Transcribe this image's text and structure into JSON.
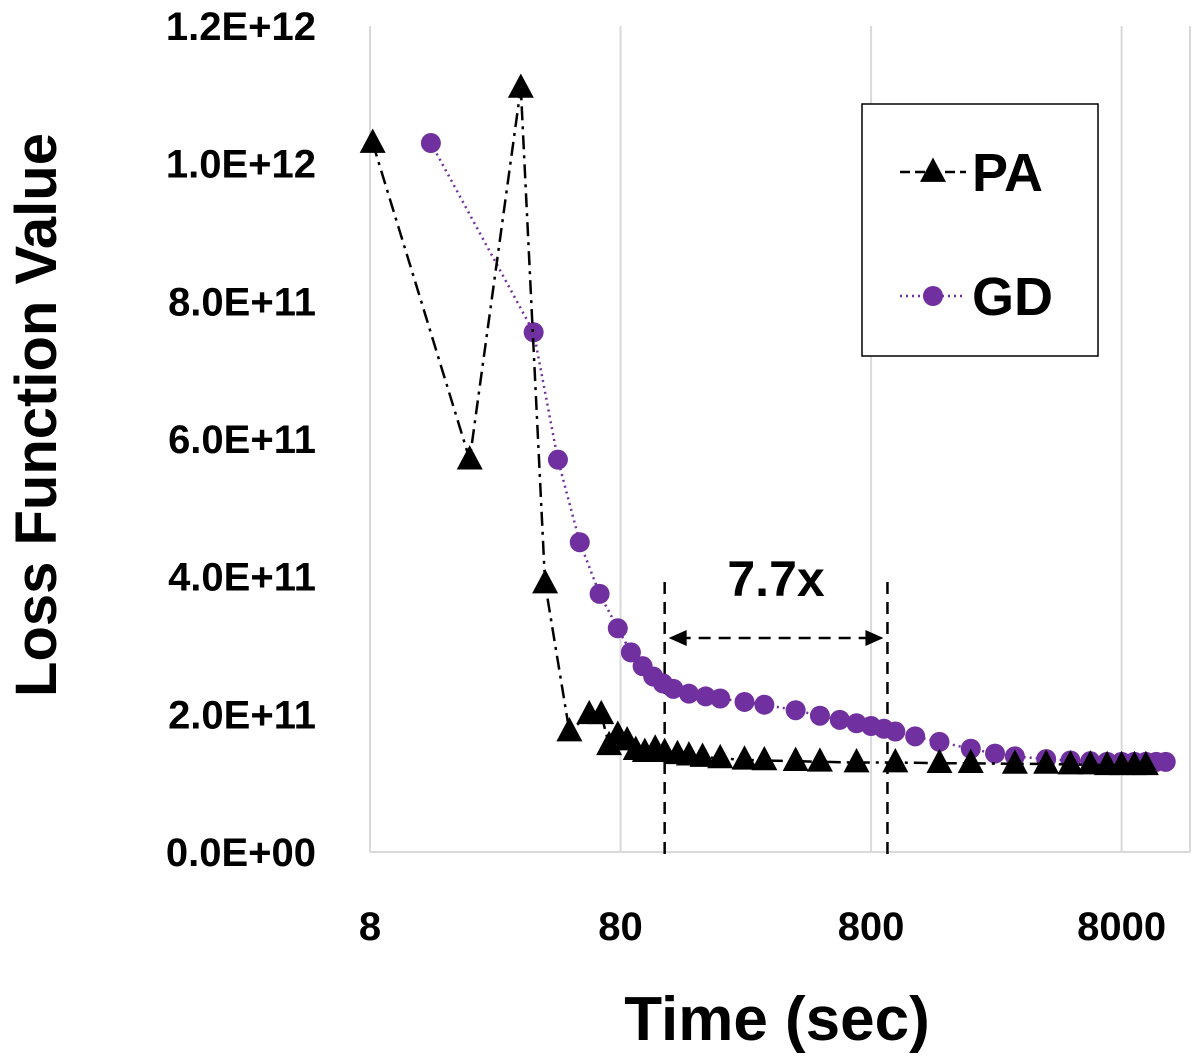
{
  "chart_data": {
    "type": "line",
    "title": "",
    "xlabel": "Time (sec)",
    "ylabel": "Loss Function Value",
    "x_scale": "log10",
    "xlim": [
      8,
      15000
    ],
    "ylim": [
      0,
      1200000000000
    ],
    "x_ticks": [
      8,
      80,
      800,
      8000
    ],
    "x_tick_labels": [
      "8",
      "80",
      "800",
      "8000"
    ],
    "y_ticks": [
      0,
      200000000000,
      400000000000,
      600000000000,
      800000000000,
      1000000000000,
      1200000000000
    ],
    "y_tick_labels": [
      "0.0E+00",
      "2.0E+11",
      "4.0E+11",
      "6.0E+11",
      "8.0E+11",
      "1.0E+12",
      "1.2E+12"
    ],
    "grid": "vertical",
    "legend_position": "top-right",
    "series": [
      {
        "name": "PA",
        "color": "#000000",
        "marker": "triangle",
        "line_style": "dash-dot",
        "x": [
          8.2,
          20,
          32,
          40,
          50,
          60,
          67,
          72,
          78,
          85,
          92,
          100,
          110,
          120,
          135,
          150,
          170,
          200,
          250,
          300,
          400,
          500,
          700,
          1000,
          1500,
          2000,
          3000,
          4000,
          5000,
          6000,
          7000,
          8000,
          9000,
          10000
        ],
        "y": [
          1030000000000,
          570000000000,
          1110000000000,
          390000000000,
          175000000000,
          200000000000,
          200000000000,
          155000000000,
          170000000000,
          162000000000,
          148000000000,
          145000000000,
          150000000000,
          145000000000,
          142000000000,
          140000000000,
          138000000000,
          136000000000,
          134000000000,
          133000000000,
          132000000000,
          131000000000,
          130000000000,
          130000000000,
          129000000000,
          129000000000,
          128000000000,
          128000000000,
          127000000000,
          127000000000,
          126000000000,
          126000000000,
          126000000000,
          126000000000
        ]
      },
      {
        "name": "GD",
        "color": "#7030a0",
        "marker": "circle",
        "line_style": "dotted",
        "x": [
          14,
          36,
          45,
          55,
          66,
          78,
          88,
          98,
          108,
          118,
          130,
          150,
          175,
          200,
          250,
          300,
          400,
          500,
          600,
          700,
          800,
          900,
          1000,
          1200,
          1500,
          2000,
          2500,
          3000,
          4000,
          5000,
          6000,
          7000,
          8000,
          9000,
          10000,
          11000,
          12000
        ],
        "y": [
          1030000000000,
          755000000000,
          570000000000,
          450000000000,
          375000000000,
          325000000000,
          290000000000,
          270000000000,
          255000000000,
          245000000000,
          237000000000,
          230000000000,
          226000000000,
          223000000000,
          218000000000,
          214000000000,
          206000000000,
          198000000000,
          192000000000,
          187000000000,
          183000000000,
          179000000000,
          175000000000,
          168000000000,
          160000000000,
          150000000000,
          143000000000,
          139000000000,
          135000000000,
          133000000000,
          132000000000,
          131000000000,
          131000000000,
          131000000000,
          131000000000,
          131000000000,
          131000000000
        ]
      }
    ],
    "annotations": [
      {
        "text": "7.7x",
        "type": "speedup-bracket",
        "x_start": 120,
        "x_end": 930,
        "note_y": 400000000000
      }
    ]
  }
}
